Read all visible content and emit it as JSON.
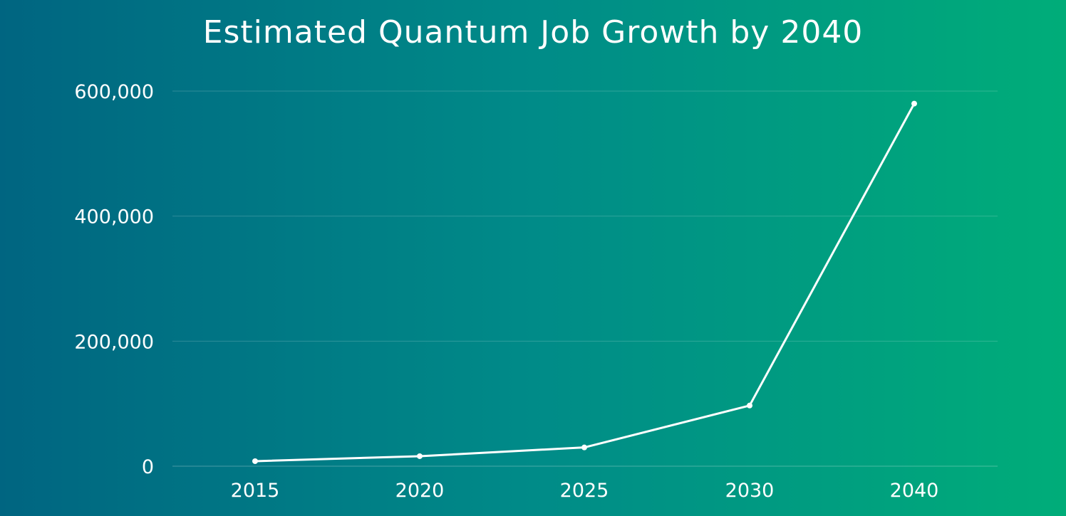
{
  "chart_data": {
    "type": "line",
    "title": "Estimated Quantum Job Growth by 2040",
    "categories": [
      "2015",
      "2020",
      "2025",
      "2030",
      "2040"
    ],
    "series": [
      {
        "values": [
          8000,
          16000,
          30000,
          97000,
          580000
        ]
      }
    ],
    "y_ticks": [
      "0",
      "200,000",
      "400,000",
      "600,000"
    ],
    "y_tick_values": [
      0,
      200000,
      400000,
      600000
    ],
    "ylim": [
      0,
      600000
    ],
    "grid": true,
    "legend": "none",
    "colors": {
      "background_start": "#006581",
      "background_end": "#00ad79",
      "line": "#ffffff",
      "text": "#ffffff"
    }
  }
}
